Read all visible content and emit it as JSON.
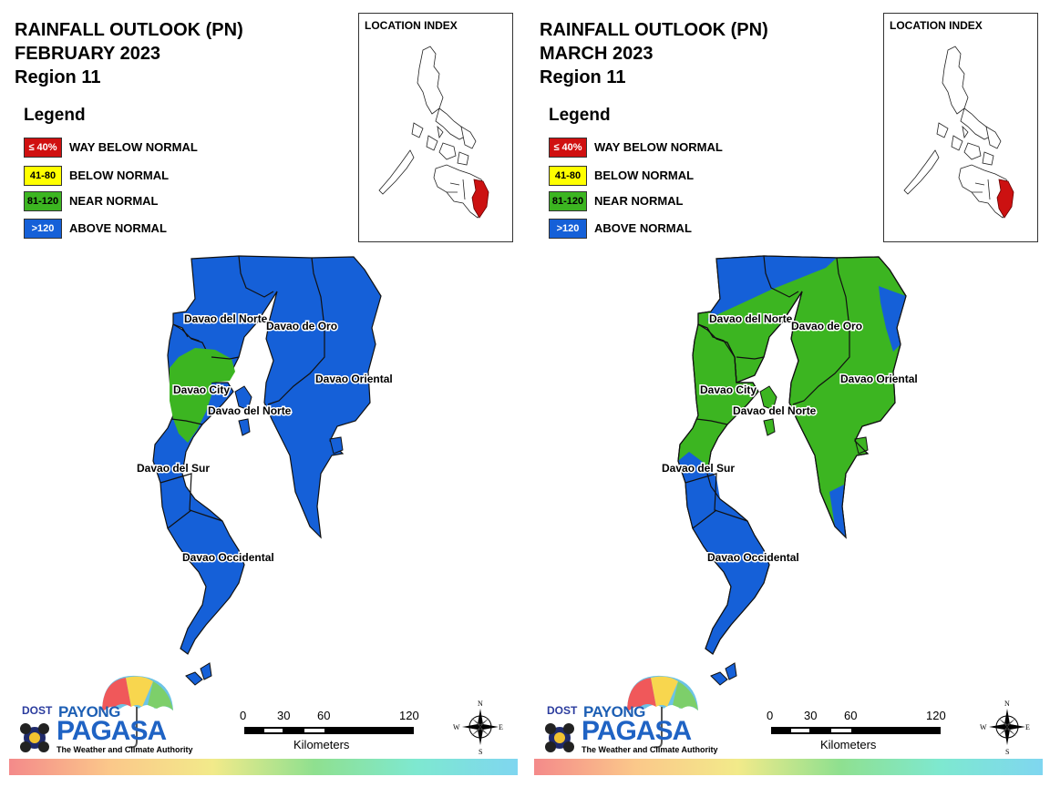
{
  "panels": [
    {
      "id": "feb",
      "title_line1": "RAINFALL OUTLOOK (PN)",
      "title_line2": "FEBRUARY 2023",
      "title_line3": "Region 11",
      "legend_title": "Legend",
      "legend": [
        {
          "range": "≤ 40%",
          "label": "WAY BELOW NORMAL",
          "color": "#d01010",
          "text_color": "#ffffff"
        },
        {
          "range": "41-80",
          "label": "BELOW NORMAL",
          "color": "#ffff00",
          "text_color": "#000000"
        },
        {
          "range": "81-120",
          "label": "NEAR NORMAL",
          "color": "#3cb521",
          "text_color": "#000000"
        },
        {
          "range": ">120",
          "label": "ABOVE NORMAL",
          "color": "#1560d8",
          "text_color": "#ffffff"
        }
      ],
      "location_index_title": "LOCATION INDEX",
      "provinces": [
        {
          "name": "Davao del Norte",
          "category": "ABOVE NORMAL"
        },
        {
          "name": "Davao de Oro",
          "category": "ABOVE NORMAL"
        },
        {
          "name": "Davao Oriental",
          "category": "ABOVE NORMAL"
        },
        {
          "name": "Davao City",
          "category": "NEAR NORMAL"
        },
        {
          "name": "Davao del Norte",
          "category": "ABOVE NORMAL"
        },
        {
          "name": "Davao del Sur",
          "category": "ABOVE NORMAL"
        },
        {
          "name": "Davao Occidental",
          "category": "ABOVE NORMAL"
        }
      ]
    },
    {
      "id": "mar",
      "title_line1": "RAINFALL OUTLOOK (PN)",
      "title_line2": "MARCH 2023",
      "title_line3": "Region 11",
      "legend_title": "Legend",
      "legend": [
        {
          "range": "≤ 40%",
          "label": "WAY BELOW NORMAL",
          "color": "#d01010",
          "text_color": "#ffffff"
        },
        {
          "range": "41-80",
          "label": "BELOW NORMAL",
          "color": "#ffff00",
          "text_color": "#000000"
        },
        {
          "range": "81-120",
          "label": "NEAR NORMAL",
          "color": "#3cb521",
          "text_color": "#000000"
        },
        {
          "range": ">120",
          "label": "ABOVE NORMAL",
          "color": "#1560d8",
          "text_color": "#ffffff"
        }
      ],
      "location_index_title": "LOCATION INDEX",
      "provinces": [
        {
          "name": "Davao del Norte",
          "category": "NEAR NORMAL"
        },
        {
          "name": "Davao de Oro",
          "category": "NEAR NORMAL"
        },
        {
          "name": "Davao Oriental",
          "category": "NEAR NORMAL"
        },
        {
          "name": "Davao City",
          "category": "NEAR NORMAL"
        },
        {
          "name": "Davao del Norte",
          "category": "NEAR NORMAL"
        },
        {
          "name": "Davao del Sur",
          "category": "NEAR NORMAL"
        },
        {
          "name": "Davao Occidental",
          "category": "ABOVE NORMAL"
        }
      ]
    }
  ],
  "logo": {
    "dost": "DOST",
    "payong": "PAYONG",
    "pagasa": "PAGASA",
    "tagline": "The Weather and Climate Authority"
  },
  "scale_bar": {
    "ticks": [
      "0",
      "30",
      "60",
      "120"
    ],
    "unit": "Kilometers"
  },
  "compass": {
    "n": "N",
    "s": "S",
    "e": "E",
    "w": "W"
  },
  "highlight_color": "#cc1111",
  "blue": "#1560d8",
  "green": "#3cb521"
}
